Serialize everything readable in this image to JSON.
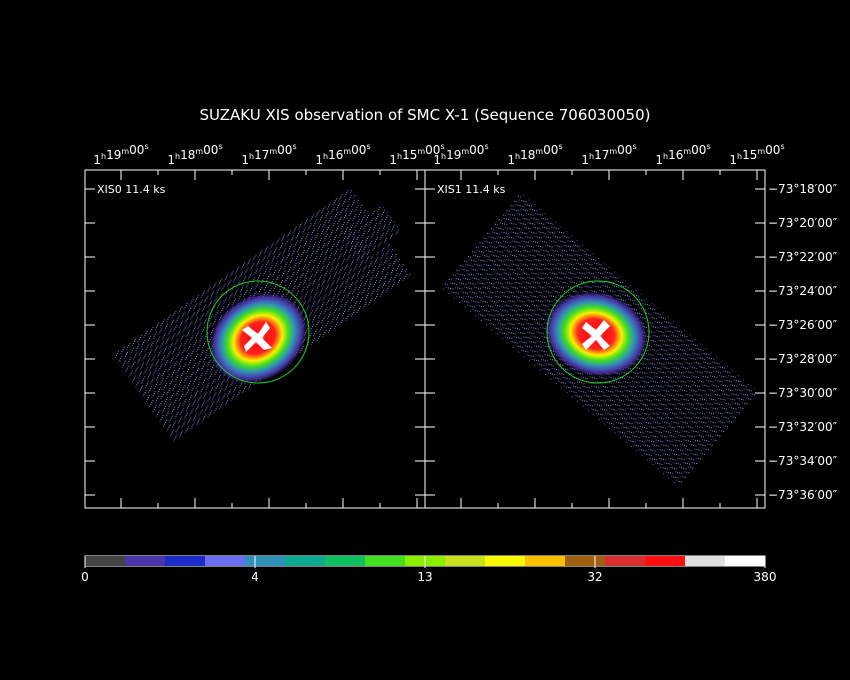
{
  "title": "SUZAKU XIS observation of SMC X-1  (Sequence 706030050)",
  "panels": [
    {
      "label": "XIS0 11.4 ks"
    },
    {
      "label": "XIS1 11.4 ks"
    }
  ],
  "ra_units": [
    "h",
    "m",
    "s"
  ],
  "ra_ticks": [
    {
      "hours": "1",
      "minutes": "19",
      "seconds": "00"
    },
    {
      "hours": "1",
      "minutes": "18",
      "seconds": "00"
    },
    {
      "hours": "1",
      "minutes": "17",
      "seconds": "00"
    },
    {
      "hours": "1",
      "minutes": "16",
      "seconds": "00"
    },
    {
      "hours": "1",
      "minutes": "15",
      "seconds": "00"
    }
  ],
  "dec_ticks": [
    "−73°18′00″",
    "−73°20′00″",
    "−73°22′00″",
    "−73°24′00″",
    "−73°26′00″",
    "−73°28′00″",
    "−73°30′00″",
    "−73°32′00″",
    "−73°34′00″",
    "−73°36′00″"
  ],
  "colorbar": {
    "colors": [
      "#444444",
      "#4a36a8",
      "#1c2cc8",
      "#6c6cf0",
      "#3090b8",
      "#10a890",
      "#10c060",
      "#40e020",
      "#88f000",
      "#c8e020",
      "#f8f800",
      "#f8c000",
      "#a06010",
      "#d83030",
      "#ff1010",
      "#e0e0e0"
    ],
    "labels": [
      "0",
      "4",
      "13",
      "32",
      "380"
    ]
  }
}
